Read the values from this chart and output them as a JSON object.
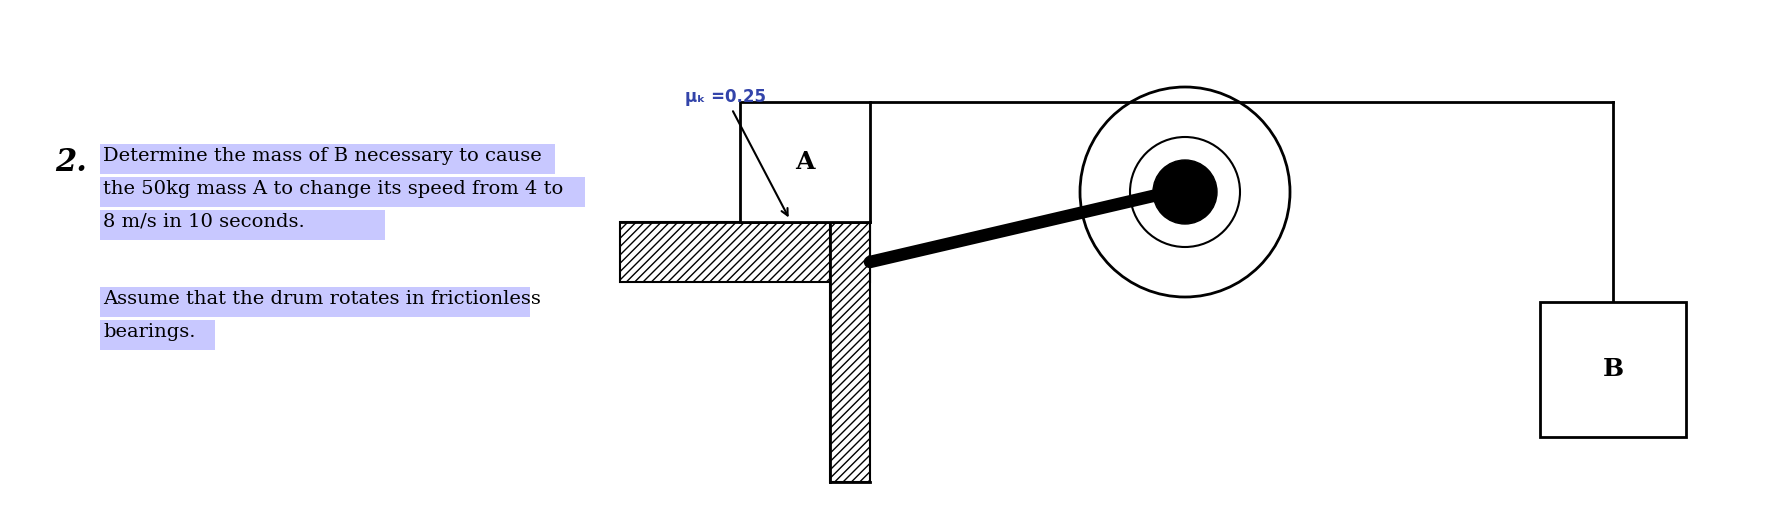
{
  "bg_color": "#ffffff",
  "highlight_color": "#c8c8ff",
  "text_color": "#000000",
  "dark_text_color": "#1a1a5e",
  "number_text": "2.",
  "line1": "Determine the mass of B necessary to cause",
  "line2": "the 50kg mass A to change its speed from 4 to",
  "line3": "8 m/s in 10 seconds.",
  "line4": "Assume that the drum rotates in frictionless",
  "line5": "bearings.",
  "mu_label": "μₖ =0.25",
  "label_A": "A",
  "label_B": "B",
  "line_color": "#000000",
  "text_fontsize": 14,
  "number_fontsize": 22,
  "label_fontsize": 16,
  "mu_fontsize": 12
}
